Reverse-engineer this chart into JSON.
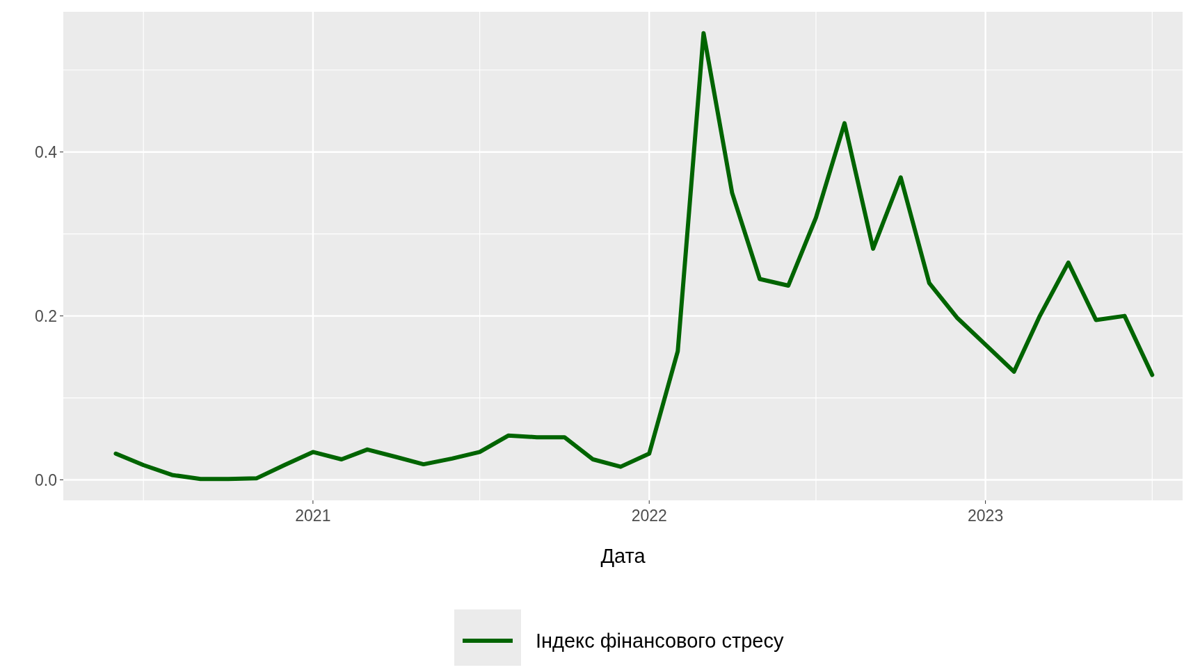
{
  "chart_data": {
    "type": "line",
    "xlabel": "Дата",
    "x": [
      "2020-06",
      "2020-07",
      "2020-08",
      "2020-09",
      "2020-10",
      "2020-11",
      "2020-12",
      "2021-01",
      "2021-02",
      "2021-03",
      "2021-04",
      "2021-05",
      "2021-06",
      "2021-07",
      "2021-08",
      "2021-09",
      "2021-10",
      "2021-11",
      "2021-12",
      "2022-01",
      "2022-02",
      "2022-03",
      "2022-04",
      "2022-05",
      "2022-06",
      "2022-07",
      "2022-08",
      "2022-09",
      "2022-10",
      "2022-11",
      "2022-12",
      "2023-01",
      "2023-02",
      "2023-03",
      "2023-04",
      "2023-05",
      "2023-06",
      "2023-07"
    ],
    "series": [
      {
        "name": "Індекс фінансового стресу",
        "color": "#006400",
        "values": [
          0.032,
          0.018,
          0.006,
          0.001,
          0.001,
          0.002,
          0.018,
          0.034,
          0.025,
          0.037,
          0.028,
          0.019,
          0.026,
          0.034,
          0.054,
          0.052,
          0.052,
          0.025,
          0.016,
          0.032,
          0.157,
          0.545,
          0.35,
          0.245,
          0.237,
          0.32,
          0.435,
          0.282,
          0.369,
          0.24,
          0.198,
          0.165,
          0.132,
          0.2,
          0.265,
          0.195,
          0.2,
          0.128
        ]
      }
    ],
    "xlim": [
      "2020-04-05",
      "2023-08-03"
    ],
    "xticks": [
      {
        "value": "2020-07",
        "label": null
      },
      "2021",
      {
        "value": "2021-07",
        "label": null
      },
      "2022",
      {
        "value": "2022-07",
        "label": null
      },
      "2023",
      {
        "value": "2023-07",
        "label": null
      }
    ],
    "ylim": [
      -0.025,
      0.571
    ],
    "yticks": [
      {
        "value": 0,
        "label": "0.0"
      },
      {
        "value": 0.1,
        "label": null
      },
      0.2,
      {
        "value": 0.3,
        "label": null
      },
      0.4,
      {
        "value": 0.5,
        "label": null
      }
    ],
    "grid": true,
    "legend": "bottom",
    "line_style": "solid"
  }
}
